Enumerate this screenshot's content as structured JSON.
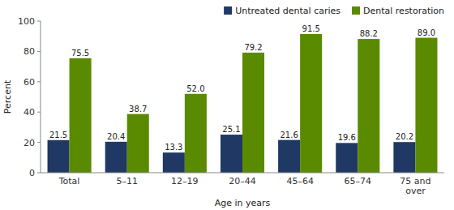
{
  "chart_data": {
    "type": "bar",
    "categories": [
      "Total",
      "5–11",
      "12–19",
      "20–44",
      "45–64",
      "65–74",
      "75 and\nover"
    ],
    "series": [
      {
        "name": "Untreated dental caries",
        "color": "#1f3864",
        "values": [
          21.5,
          20.4,
          13.3,
          25.1,
          21.6,
          19.6,
          20.2
        ]
      },
      {
        "name": "Dental restoration",
        "color": "#5a8a00",
        "values": [
          75.5,
          38.7,
          52.0,
          79.2,
          91.5,
          88.2,
          89.0
        ],
        "value_labels": [
          "75.5",
          "38.7",
          "52.0",
          "79.2",
          "91.5",
          "88.2",
          "89.0"
        ]
      }
    ],
    "xlabel": "Age in years",
    "ylabel": "Percent",
    "ylim": [
      0,
      100
    ],
    "yticks": [
      0,
      20,
      40,
      60,
      80,
      100
    ],
    "grid": false,
    "legend": "upper-right",
    "data_labels": true
  }
}
